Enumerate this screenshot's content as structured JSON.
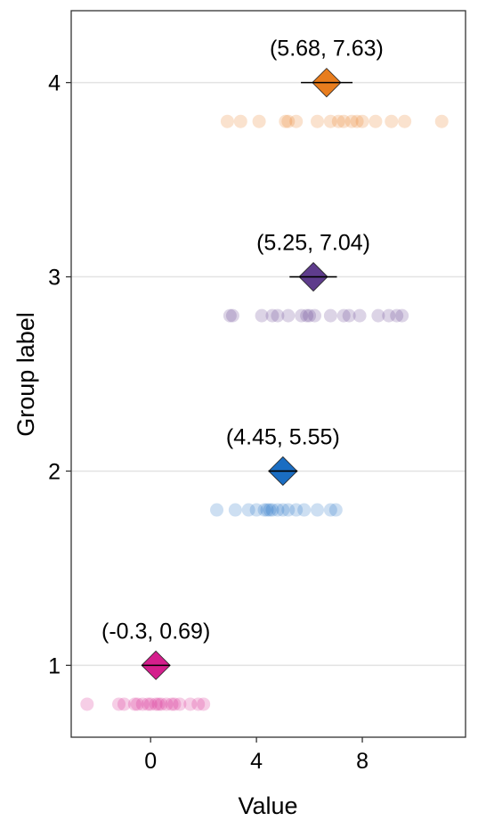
{
  "chart_data": {
    "type": "scatter",
    "title": "",
    "xlabel": "Value",
    "ylabel": "Group label",
    "xlim": [
      -3.0,
      11.9
    ],
    "ylim": [
      0.63,
      4.37
    ],
    "x_ticks": [
      0,
      4,
      8
    ],
    "y_ticks": [
      1,
      2,
      3,
      4
    ],
    "grid": "horizontal major",
    "legend": "none",
    "groups": [
      {
        "group": 1,
        "color": "#D41F8C",
        "mean": 0.2,
        "interval": [
          -0.3,
          0.69
        ],
        "annotation": "(-0.3, 0.69)",
        "points": [
          -2.4,
          -1.2,
          -1.0,
          -0.6,
          -0.5,
          -0.3,
          -0.1,
          0.0,
          0.2,
          0.3,
          0.4,
          0.6,
          0.8,
          0.9,
          1.1,
          1.5,
          1.8,
          2.0
        ]
      },
      {
        "group": 2,
        "color": "#1A6DC2",
        "mean": 5.0,
        "interval": [
          4.45,
          5.55
        ],
        "annotation": "(4.45, 5.55)",
        "points": [
          2.5,
          3.2,
          3.7,
          4.0,
          4.3,
          4.4,
          4.5,
          4.6,
          4.8,
          5.0,
          5.2,
          5.5,
          5.8,
          6.3,
          6.8,
          7.0
        ]
      },
      {
        "group": 3,
        "color": "#5E3C8C",
        "mean": 6.15,
        "interval": [
          5.25,
          7.04
        ],
        "annotation": "(5.25, 7.04)",
        "points": [
          3.0,
          3.1,
          4.2,
          4.6,
          4.8,
          5.2,
          5.7,
          5.9,
          6.0,
          6.2,
          6.8,
          7.3,
          7.5,
          7.9,
          8.6,
          9.0,
          9.3,
          9.5
        ]
      },
      {
        "group": 4,
        "color": "#E87D1E",
        "mean": 6.65,
        "interval": [
          5.68,
          7.63
        ],
        "annotation": "(5.68, 7.63)",
        "points": [
          2.9,
          3.4,
          4.1,
          5.1,
          5.2,
          5.5,
          6.3,
          6.8,
          7.1,
          7.3,
          7.6,
          7.8,
          8.0,
          8.5,
          9.1,
          9.6,
          11.0
        ]
      }
    ]
  }
}
